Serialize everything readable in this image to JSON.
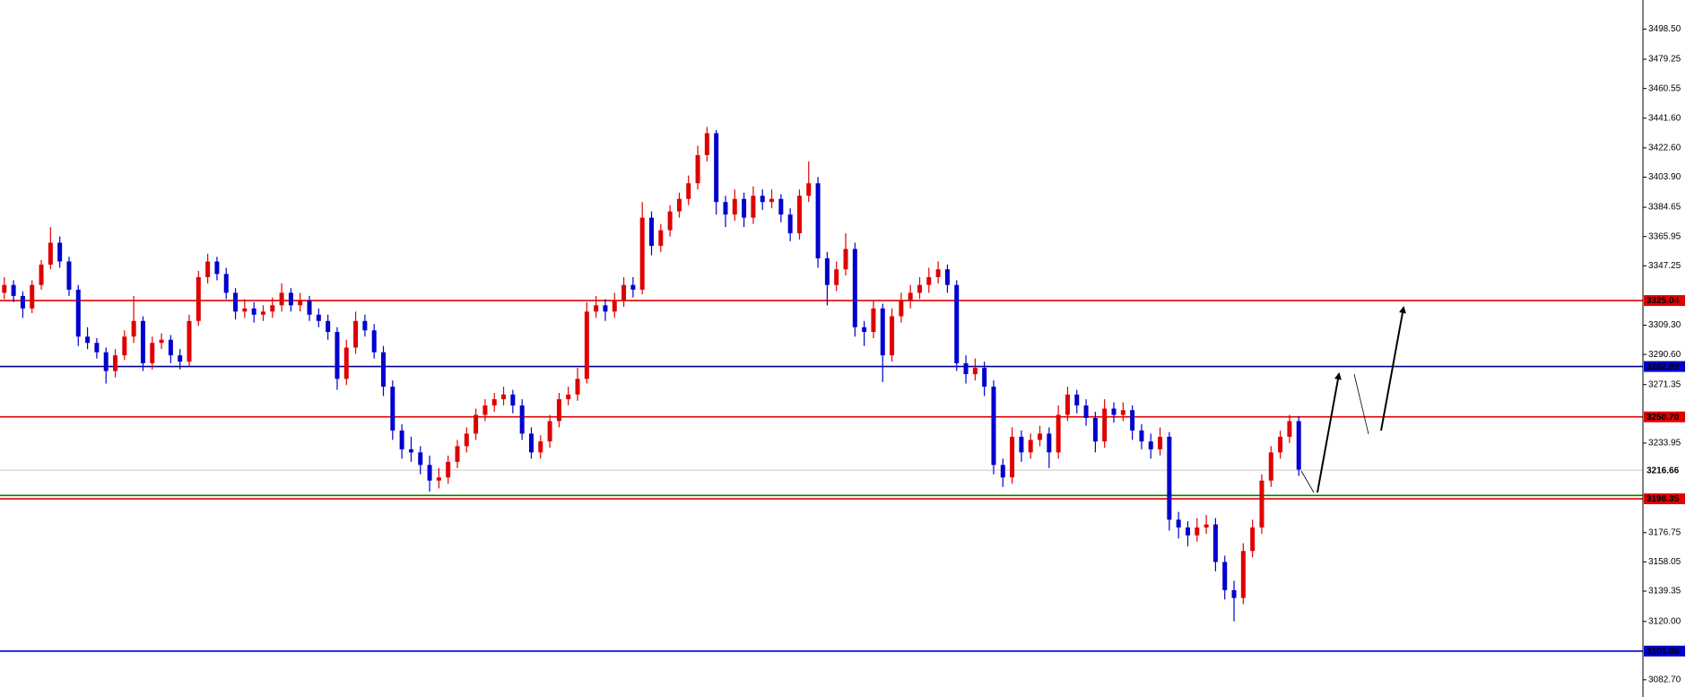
{
  "chart_data": {
    "type": "candlestick",
    "up_color": "#e00000",
    "down_color": "#0000cc",
    "ylim": [
      3071.7,
      3517.1
    ],
    "yticks": [
      {
        "value": 3498.5,
        "label": "3498.50"
      },
      {
        "value": 3479.25,
        "label": "3479.25"
      },
      {
        "value": 3460.55,
        "label": "3460.55"
      },
      {
        "value": 3441.6,
        "label": "3441.60"
      },
      {
        "value": 3422.6,
        "label": "3422.60"
      },
      {
        "value": 3403.9,
        "label": "3403.90"
      },
      {
        "value": 3384.65,
        "label": "3384.65"
      },
      {
        "value": 3365.95,
        "label": "3365.95"
      },
      {
        "value": 3347.25,
        "label": "3347.25"
      },
      {
        "value": 3309.3,
        "label": "3309.30"
      },
      {
        "value": 3290.6,
        "label": "3290.60"
      },
      {
        "value": 3271.35,
        "label": "3271.35"
      },
      {
        "value": 3233.95,
        "label": "3233.95"
      },
      {
        "value": 3176.75,
        "label": "3176.75"
      },
      {
        "value": 3158.05,
        "label": "3158.05"
      },
      {
        "value": 3139.35,
        "label": "3139.35"
      },
      {
        "value": 3120,
        "label": "3120.00"
      },
      {
        "value": 3082.7,
        "label": "3082.70"
      }
    ],
    "levels": [
      {
        "value": 3325.04,
        "label": "3325.04",
        "color": "#e00000",
        "label_fill": "#e00000",
        "label_color": "#ffffff"
      },
      {
        "value": 3282.89,
        "label": "3282.89",
        "color": "#00008b",
        "label_fill": "#0000cc",
        "label_color": "#ffffff"
      },
      {
        "value": 3250.7,
        "label": "3250.70",
        "color": "#e00000",
        "label_fill": "#e00000",
        "label_color": "#ffffff"
      },
      {
        "value": 3216.66,
        "label": "3216.66",
        "color": "#c8c8c8",
        "label_fill": "#ffffff",
        "label_color": "#000000"
      },
      {
        "value": 3200.5,
        "color": "#008000"
      },
      {
        "value": 3198.35,
        "label": "3198.35",
        "color": "#e00000",
        "label_fill": "#e00000",
        "label_color": "#ffffff"
      },
      {
        "value": 3101.06,
        "label": "3101.06",
        "color": "#0000cc",
        "label_fill": "#0000cc",
        "label_color": "#ffffff"
      }
    ],
    "candles": [
      [
        3330,
        3340,
        3326,
        3335
      ],
      [
        3335,
        3338,
        3324,
        3328
      ],
      [
        3328,
        3331,
        3314,
        3320
      ],
      [
        3320,
        3338,
        3317,
        3335
      ],
      [
        3335,
        3351,
        3332,
        3348
      ],
      [
        3348,
        3372,
        3345,
        3362
      ],
      [
        3362,
        3366,
        3346,
        3350
      ],
      [
        3350,
        3353,
        3328,
        3332
      ],
      [
        3332,
        3335,
        3296,
        3302
      ],
      [
        3302,
        3308,
        3294,
        3298
      ],
      [
        3298,
        3301,
        3288,
        3292
      ],
      [
        3292,
        3295,
        3272,
        3280
      ],
      [
        3280,
        3294,
        3276,
        3290
      ],
      [
        3290,
        3306,
        3287,
        3302
      ],
      [
        3302,
        3328,
        3298,
        3312
      ],
      [
        3312,
        3315,
        3280,
        3285
      ],
      [
        3285,
        3302,
        3281,
        3298
      ],
      [
        3298,
        3304,
        3294,
        3300
      ],
      [
        3300,
        3303,
        3285,
        3290
      ],
      [
        3290,
        3294,
        3281,
        3286
      ],
      [
        3286,
        3316,
        3283,
        3312
      ],
      [
        3312,
        3344,
        3309,
        3340
      ],
      [
        3340,
        3355,
        3336,
        3350
      ],
      [
        3350,
        3353,
        3338,
        3342
      ],
      [
        3342,
        3346,
        3326,
        3330
      ],
      [
        3330,
        3333,
        3313,
        3318
      ],
      [
        3318,
        3326,
        3314,
        3320
      ],
      [
        3320,
        3324,
        3311,
        3316
      ],
      [
        3316,
        3322,
        3312,
        3318
      ],
      [
        3318,
        3327,
        3314,
        3322
      ],
      [
        3322,
        3336,
        3318,
        3330
      ],
      [
        3330,
        3333,
        3318,
        3322
      ],
      [
        3322,
        3330,
        3318,
        3325
      ],
      [
        3325,
        3328,
        3312,
        3316
      ],
      [
        3316,
        3320,
        3308,
        3312
      ],
      [
        3312,
        3316,
        3300,
        3305
      ],
      [
        3305,
        3308,
        3268,
        3275
      ],
      [
        3275,
        3300,
        3271,
        3295
      ],
      [
        3295,
        3318,
        3291,
        3312
      ],
      [
        3312,
        3316,
        3302,
        3306
      ],
      [
        3306,
        3310,
        3288,
        3292
      ],
      [
        3292,
        3296,
        3264,
        3270
      ],
      [
        3270,
        3274,
        3236,
        3242
      ],
      [
        3242,
        3246,
        3224,
        3230
      ],
      [
        3230,
        3238,
        3222,
        3228
      ],
      [
        3228,
        3232,
        3214,
        3220
      ],
      [
        3220,
        3226,
        3203,
        3210
      ],
      [
        3210,
        3218,
        3205,
        3212
      ],
      [
        3212,
        3226,
        3208,
        3222
      ],
      [
        3222,
        3236,
        3218,
        3232
      ],
      [
        3232,
        3244,
        3228,
        3240
      ],
      [
        3240,
        3256,
        3236,
        3252
      ],
      [
        3252,
        3262,
        3248,
        3258
      ],
      [
        3258,
        3266,
        3254,
        3262
      ],
      [
        3262,
        3270,
        3258,
        3265
      ],
      [
        3265,
        3268,
        3253,
        3258
      ],
      [
        3258,
        3262,
        3236,
        3240
      ],
      [
        3240,
        3244,
        3224,
        3228
      ],
      [
        3228,
        3239,
        3224,
        3235
      ],
      [
        3235,
        3252,
        3231,
        3248
      ],
      [
        3248,
        3266,
        3244,
        3262
      ],
      [
        3262,
        3270,
        3258,
        3265
      ],
      [
        3265,
        3282,
        3261,
        3275
      ],
      [
        3275,
        3324,
        3272,
        3318
      ],
      [
        3318,
        3328,
        3314,
        3322
      ],
      [
        3322,
        3326,
        3312,
        3318
      ],
      [
        3318,
        3330,
        3314,
        3325
      ],
      [
        3325,
        3340,
        3321,
        3335
      ],
      [
        3335,
        3340,
        3327,
        3332
      ],
      [
        3332,
        3388,
        3329,
        3378
      ],
      [
        3378,
        3382,
        3354,
        3360
      ],
      [
        3360,
        3374,
        3356,
        3370
      ],
      [
        3370,
        3386,
        3366,
        3382
      ],
      [
        3382,
        3394,
        3378,
        3390
      ],
      [
        3390,
        3405,
        3386,
        3400
      ],
      [
        3400,
        3424,
        3396,
        3418
      ],
      [
        3418,
        3436,
        3414,
        3432
      ],
      [
        3432,
        3434,
        3380,
        3388
      ],
      [
        3388,
        3392,
        3372,
        3380
      ],
      [
        3380,
        3396,
        3376,
        3390
      ],
      [
        3390,
        3394,
        3372,
        3378
      ],
      [
        3378,
        3398,
        3374,
        3392
      ],
      [
        3392,
        3396,
        3383,
        3388
      ],
      [
        3388,
        3396,
        3384,
        3390
      ],
      [
        3390,
        3393,
        3375,
        3380
      ],
      [
        3380,
        3384,
        3363,
        3368
      ],
      [
        3368,
        3396,
        3364,
        3392
      ],
      [
        3392,
        3414,
        3388,
        3400
      ],
      [
        3400,
        3404,
        3346,
        3352
      ],
      [
        3352,
        3356,
        3322,
        3335
      ],
      [
        3335,
        3350,
        3331,
        3345
      ],
      [
        3345,
        3368,
        3341,
        3358
      ],
      [
        3358,
        3362,
        3302,
        3308
      ],
      [
        3308,
        3312,
        3296,
        3305
      ],
      [
        3305,
        3325,
        3301,
        3320
      ],
      [
        3320,
        3323,
        3273,
        3290
      ],
      [
        3290,
        3320,
        3286,
        3315
      ],
      [
        3315,
        3330,
        3311,
        3325
      ],
      [
        3325,
        3335,
        3320,
        3330
      ],
      [
        3330,
        3340,
        3326,
        3335
      ],
      [
        3335,
        3346,
        3330,
        3340
      ],
      [
        3340,
        3350,
        3336,
        3345
      ],
      [
        3345,
        3348,
        3330,
        3335
      ],
      [
        3335,
        3338,
        3280,
        3285
      ],
      [
        3285,
        3290,
        3272,
        3278
      ],
      [
        3278,
        3288,
        3274,
        3282
      ],
      [
        3282,
        3286,
        3264,
        3270
      ],
      [
        3270,
        3274,
        3214,
        3220
      ],
      [
        3220,
        3224,
        3206,
        3212
      ],
      [
        3212,
        3244,
        3208,
        3238
      ],
      [
        3238,
        3242,
        3222,
        3228
      ],
      [
        3228,
        3240,
        3224,
        3236
      ],
      [
        3236,
        3245,
        3232,
        3240
      ],
      [
        3240,
        3244,
        3218,
        3228
      ],
      [
        3228,
        3258,
        3224,
        3252
      ],
      [
        3252,
        3270,
        3248,
        3265
      ],
      [
        3265,
        3268,
        3253,
        3258
      ],
      [
        3258,
        3262,
        3245,
        3250
      ],
      [
        3250,
        3254,
        3228,
        3235
      ],
      [
        3235,
        3262,
        3231,
        3256
      ],
      [
        3256,
        3260,
        3247,
        3252
      ],
      [
        3252,
        3260,
        3248,
        3255
      ],
      [
        3255,
        3258,
        3236,
        3242
      ],
      [
        3242,
        3246,
        3230,
        3235
      ],
      [
        3235,
        3240,
        3224,
        3230
      ],
      [
        3230,
        3244,
        3226,
        3238
      ],
      [
        3238,
        3241,
        3178,
        3185
      ],
      [
        3185,
        3190,
        3173,
        3180
      ],
      [
        3180,
        3184,
        3168,
        3175
      ],
      [
        3175,
        3186,
        3171,
        3180
      ],
      [
        3180,
        3188,
        3176,
        3182
      ],
      [
        3182,
        3186,
        3152,
        3158
      ],
      [
        3158,
        3162,
        3134,
        3140
      ],
      [
        3140,
        3146,
        3120,
        3135
      ],
      [
        3135,
        3170,
        3131,
        3165
      ],
      [
        3165,
        3185,
        3161,
        3180
      ],
      [
        3180,
        3214,
        3176,
        3210
      ],
      [
        3210,
        3232,
        3206,
        3228
      ],
      [
        3228,
        3242,
        3224,
        3238
      ],
      [
        3238,
        3252,
        3234,
        3248
      ],
      [
        3248,
        3251,
        3213,
        3217
      ]
    ]
  }
}
